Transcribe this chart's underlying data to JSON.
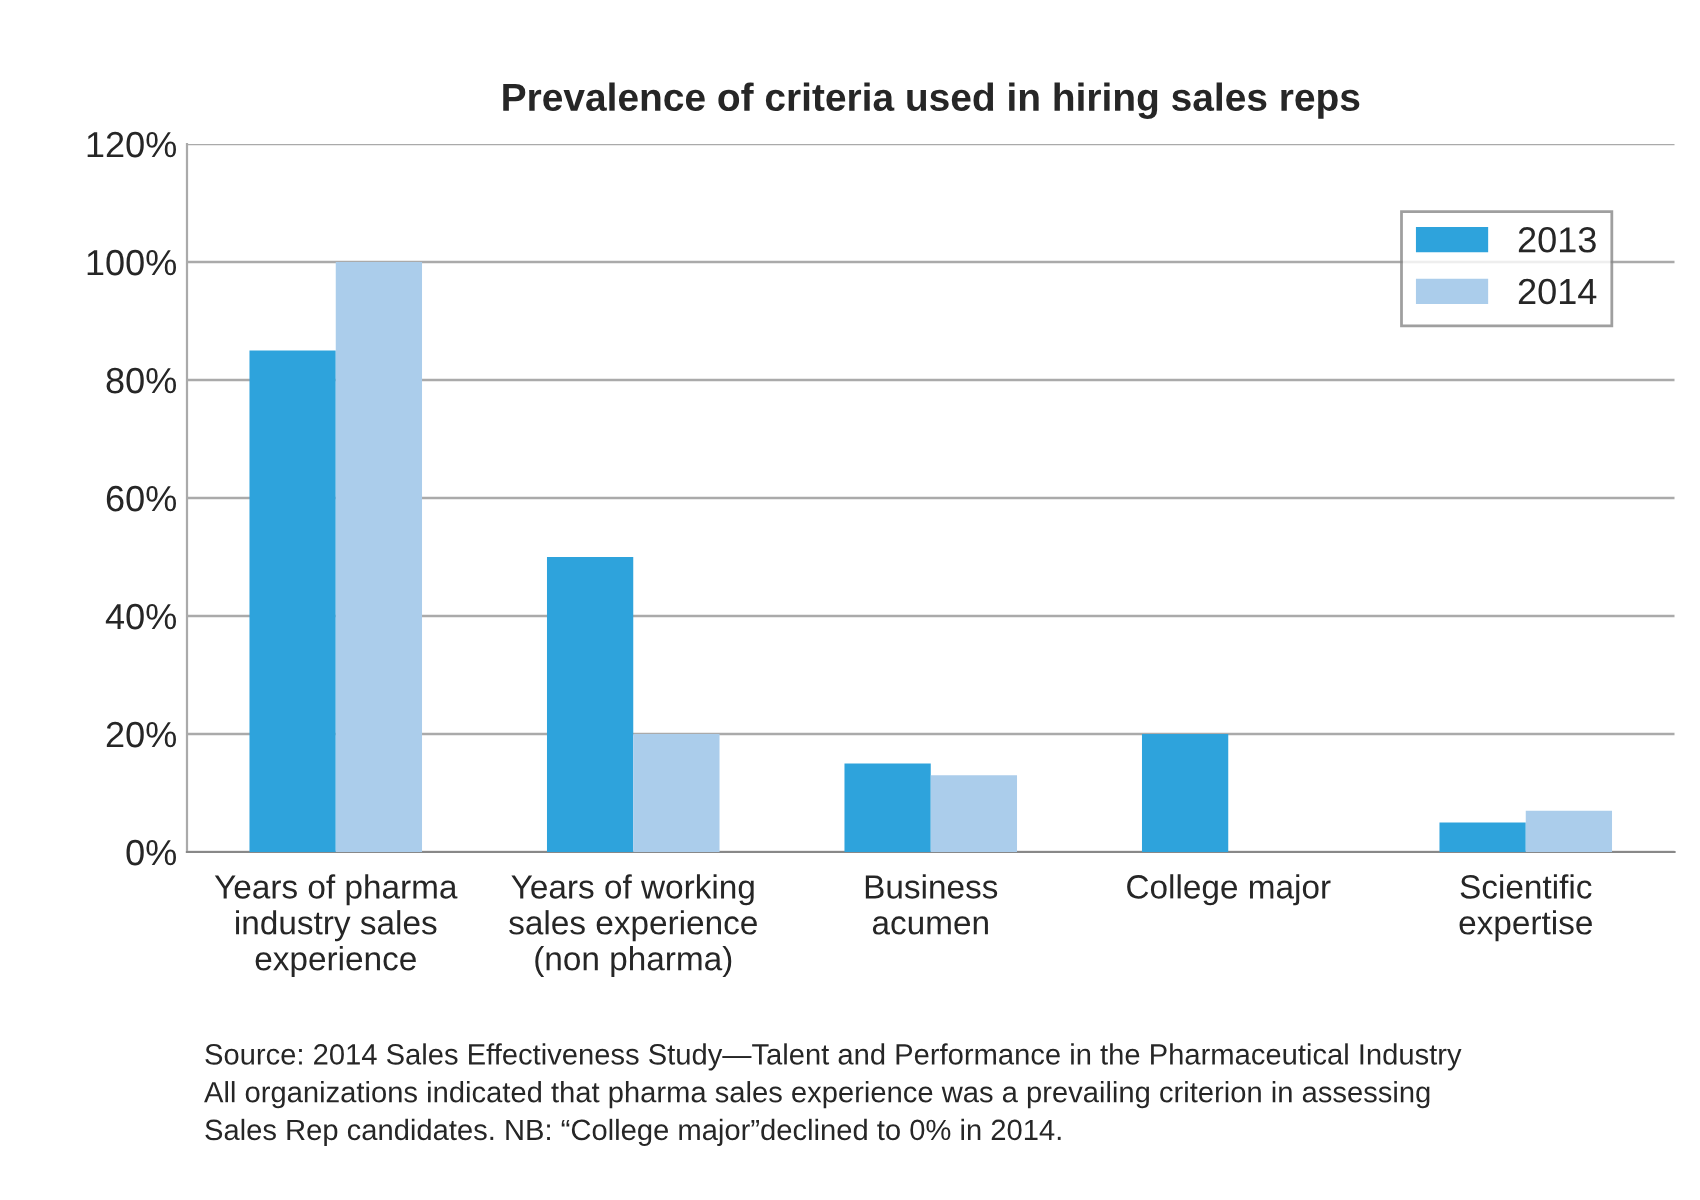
{
  "chart_data": {
    "type": "bar",
    "title": "Prevalence of criteria used in hiring sales reps",
    "categories": [
      "Years of pharma\nindustry sales\nexperience",
      "Years of working\nsales experience\n(non pharma)",
      "Business\nacumen",
      "College major",
      "Scientific\nexpertise"
    ],
    "series": [
      {
        "name": "2013",
        "color": "#2ea3dc",
        "values": [
          85,
          50,
          15,
          20,
          5
        ]
      },
      {
        "name": "2014",
        "color": "#abcdeb",
        "values": [
          100,
          20,
          13,
          0,
          7
        ]
      }
    ],
    "ylim": [
      0,
      120
    ],
    "yticks": [
      {
        "value": 0,
        "label": "0%"
      },
      {
        "value": 20,
        "label": "20%"
      },
      {
        "value": 40,
        "label": "40%"
      },
      {
        "value": 60,
        "label": "60%"
      },
      {
        "value": 80,
        "label": "80%"
      },
      {
        "value": 100,
        "label": "100%"
      },
      {
        "value": 120,
        "label": "120%"
      }
    ],
    "grid": "y",
    "legend": "top right",
    "annotations": [
      "Source: 2014 Sales Effectiveness Study—Talent and Performance in the Pharmaceutical Industry\nAll organizations indicated that pharma sales experience was a prevailing criterion in assessing\nSales Rep candidates. NB: “College major”declined to 0% in 2014."
    ]
  }
}
